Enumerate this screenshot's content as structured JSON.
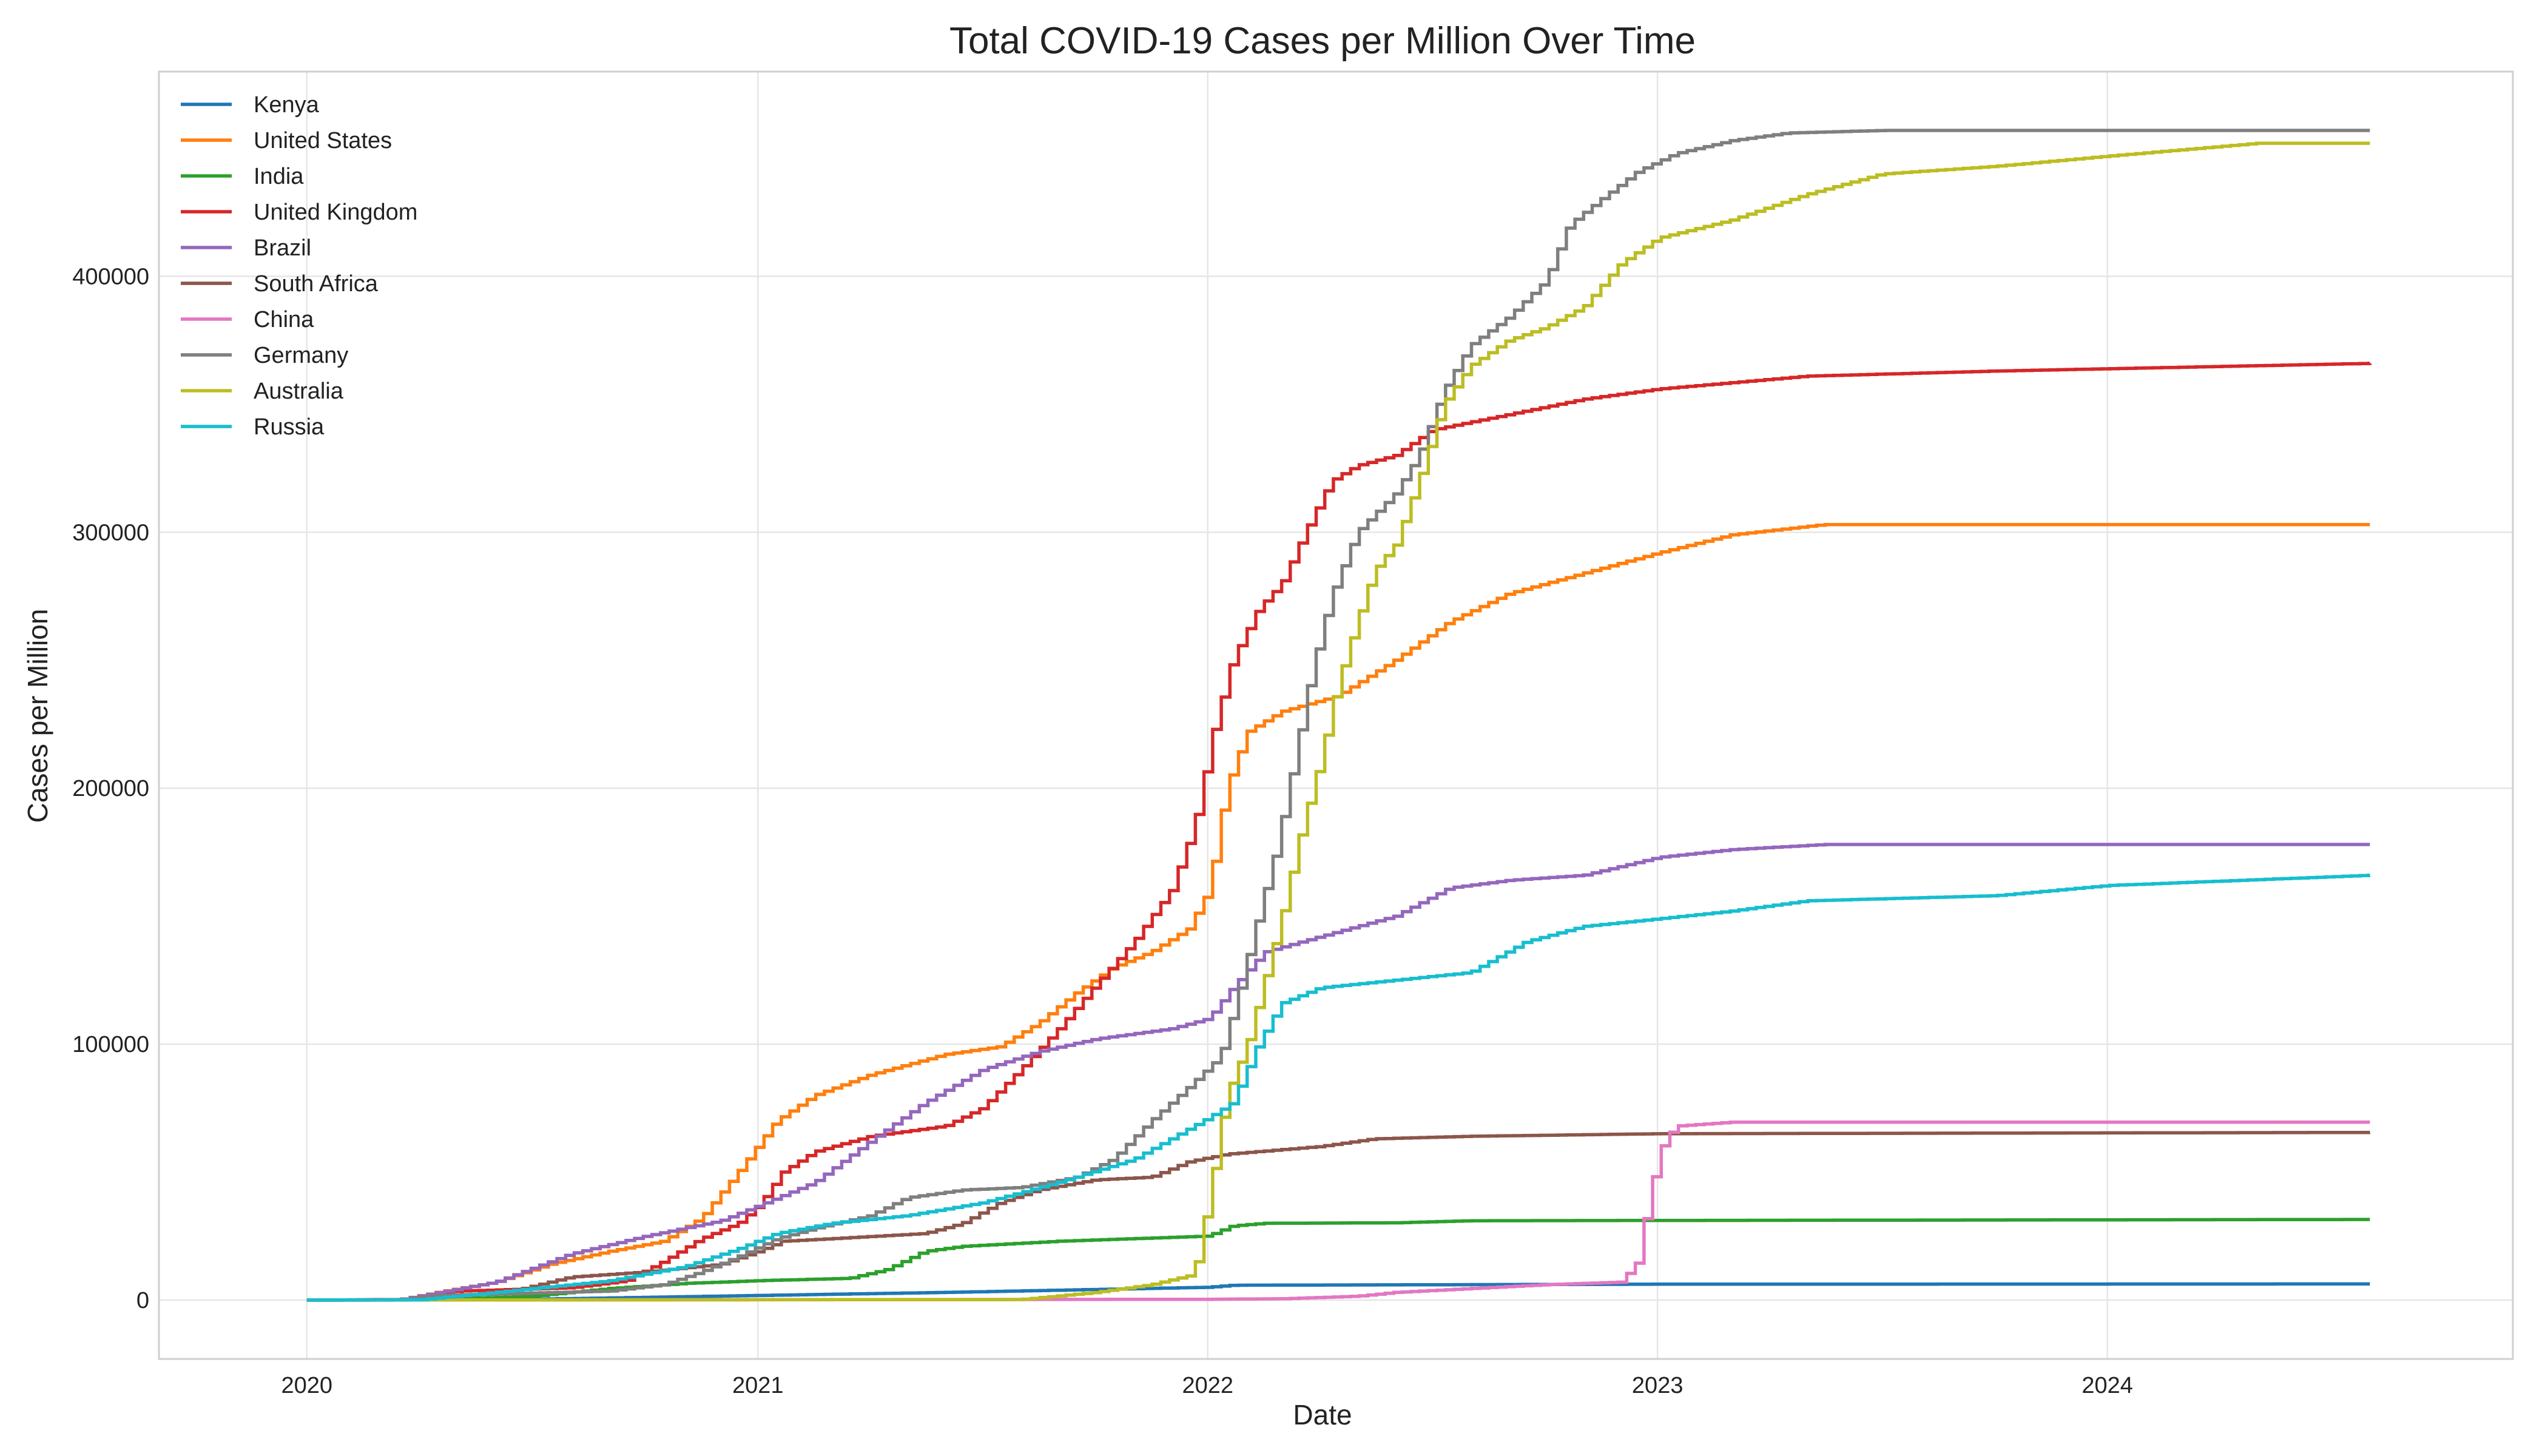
{
  "chart_data": {
    "type": "line",
    "title": "Total COVID-19 Cases per Million Over Time",
    "xlabel": "Date",
    "ylabel": "Cases per Million",
    "x_ticks": [
      "2020",
      "2021",
      "2022",
      "2023",
      "2024"
    ],
    "x_tick_values": [
      "2020-01-01",
      "2021-01-01",
      "2022-01-01",
      "2023-01-01",
      "2024-01-01"
    ],
    "xlim": [
      "2019-09-03",
      "2024-11-25"
    ],
    "y_ticks": [
      0,
      100000,
      200000,
      300000,
      400000
    ],
    "ylim": [
      -23000,
      480000
    ],
    "grid": true,
    "legend": "upper-left",
    "step": true,
    "series": [
      {
        "name": "Kenya",
        "color": "#1f77b4",
        "points": [
          [
            "2020-01-01",
            0
          ],
          [
            "2020-06-01",
            100
          ],
          [
            "2020-12-31",
            1800
          ],
          [
            "2021-06-01",
            3000
          ],
          [
            "2021-12-31",
            5000
          ],
          [
            "2022-01-20",
            5800
          ],
          [
            "2022-12-31",
            6200
          ],
          [
            "2024-08-01",
            6300
          ]
        ]
      },
      {
        "name": "United States",
        "color": "#ff7f0e",
        "points": [
          [
            "2020-01-01",
            0
          ],
          [
            "2020-03-15",
            100
          ],
          [
            "2020-04-15",
            3000
          ],
          [
            "2020-06-01",
            7000
          ],
          [
            "2020-07-15",
            14000
          ],
          [
            "2020-09-01",
            19000
          ],
          [
            "2020-10-15",
            23000
          ],
          [
            "2020-11-15",
            32000
          ],
          [
            "2020-12-15",
            50000
          ],
          [
            "2021-01-15",
            70000
          ],
          [
            "2021-02-15",
            80000
          ],
          [
            "2021-04-01",
            88000
          ],
          [
            "2021-06-01",
            96000
          ],
          [
            "2021-07-15",
            99000
          ],
          [
            "2021-08-15",
            108000
          ],
          [
            "2021-09-15",
            120000
          ],
          [
            "2021-10-15",
            130000
          ],
          [
            "2021-11-15",
            136000
          ],
          [
            "2021-12-15",
            145000
          ],
          [
            "2022-01-01",
            160000
          ],
          [
            "2022-01-15",
            200000
          ],
          [
            "2022-02-01",
            222000
          ],
          [
            "2022-03-01",
            230000
          ],
          [
            "2022-04-15",
            236000
          ],
          [
            "2022-06-01",
            250000
          ],
          [
            "2022-07-15",
            265000
          ],
          [
            "2022-09-01",
            276000
          ],
          [
            "2022-11-01",
            284000
          ],
          [
            "2023-01-01",
            292000
          ],
          [
            "2023-03-01",
            299000
          ],
          [
            "2023-05-15",
            303000
          ],
          [
            "2024-08-01",
            303000
          ]
        ]
      },
      {
        "name": "India",
        "color": "#2ca02c",
        "points": [
          [
            "2020-01-01",
            0
          ],
          [
            "2020-04-01",
            50
          ],
          [
            "2020-07-01",
            1500
          ],
          [
            "2020-09-01",
            4500
          ],
          [
            "2020-11-01",
            6500
          ],
          [
            "2021-01-01",
            7600
          ],
          [
            "2021-03-15",
            8500
          ],
          [
            "2021-04-15",
            12000
          ],
          [
            "2021-05-15",
            19000
          ],
          [
            "2021-06-15",
            21000
          ],
          [
            "2021-09-01",
            23000
          ],
          [
            "2021-12-31",
            25000
          ],
          [
            "2022-01-20",
            29000
          ],
          [
            "2022-02-15",
            30000
          ],
          [
            "2022-06-01",
            30200
          ],
          [
            "2022-08-01",
            31000
          ],
          [
            "2024-08-01",
            31500
          ]
        ]
      },
      {
        "name": "United Kingdom",
        "color": "#d62728",
        "points": [
          [
            "2020-01-01",
            0
          ],
          [
            "2020-03-15",
            200
          ],
          [
            "2020-05-01",
            3500
          ],
          [
            "2020-08-01",
            4800
          ],
          [
            "2020-09-15",
            7500
          ],
          [
            "2020-10-15",
            15000
          ],
          [
            "2020-11-15",
            24000
          ],
          [
            "2020-12-15",
            30000
          ],
          [
            "2021-01-01",
            37000
          ],
          [
            "2021-01-20",
            50000
          ],
          [
            "2021-02-15",
            58000
          ],
          [
            "2021-04-01",
            64000
          ],
          [
            "2021-06-01",
            68000
          ],
          [
            "2021-07-01",
            75000
          ],
          [
            "2021-08-01",
            90000
          ],
          [
            "2021-09-01",
            106000
          ],
          [
            "2021-10-01",
            123000
          ],
          [
            "2021-11-01",
            140000
          ],
          [
            "2021-12-01",
            160000
          ],
          [
            "2021-12-20",
            185000
          ],
          [
            "2022-01-05",
            223000
          ],
          [
            "2022-01-20",
            250000
          ],
          [
            "2022-02-10",
            270000
          ],
          [
            "2022-03-01",
            280000
          ],
          [
            "2022-03-20",
            300000
          ],
          [
            "2022-04-10",
            320000
          ],
          [
            "2022-05-01",
            326000
          ],
          [
            "2022-06-01",
            330000
          ],
          [
            "2022-07-01",
            340000
          ],
          [
            "2022-09-01",
            346000
          ],
          [
            "2022-11-01",
            352000
          ],
          [
            "2023-01-01",
            356000
          ],
          [
            "2023-05-01",
            361000
          ],
          [
            "2023-10-01",
            363000
          ],
          [
            "2024-08-01",
            366000
          ]
        ]
      },
      {
        "name": "Brazil",
        "color": "#9467bd",
        "points": [
          [
            "2020-01-01",
            0
          ],
          [
            "2020-03-15",
            100
          ],
          [
            "2020-06-01",
            7000
          ],
          [
            "2020-08-01",
            18000
          ],
          [
            "2020-10-01",
            25000
          ],
          [
            "2020-12-01",
            31000
          ],
          [
            "2021-01-01",
            37000
          ],
          [
            "2021-02-15",
            46000
          ],
          [
            "2021-04-01",
            62000
          ],
          [
            "2021-05-15",
            77000
          ],
          [
            "2021-07-01",
            90000
          ],
          [
            "2021-08-15",
            97000
          ],
          [
            "2021-10-01",
            102000
          ],
          [
            "2021-12-01",
            106000
          ],
          [
            "2022-01-01",
            110000
          ],
          [
            "2022-01-20",
            122000
          ],
          [
            "2022-02-15",
            136000
          ],
          [
            "2022-04-01",
            142000
          ],
          [
            "2022-06-01",
            150000
          ],
          [
            "2022-07-15",
            161000
          ],
          [
            "2022-09-01",
            164000
          ],
          [
            "2022-11-01",
            166000
          ],
          [
            "2023-01-01",
            173000
          ],
          [
            "2023-03-01",
            176000
          ],
          [
            "2023-05-15",
            178000
          ],
          [
            "2024-08-01",
            178000
          ]
        ]
      },
      {
        "name": "South Africa",
        "color": "#8c564b",
        "points": [
          [
            "2020-01-01",
            0
          ],
          [
            "2020-04-01",
            100
          ],
          [
            "2020-06-15",
            3500
          ],
          [
            "2020-08-01",
            9000
          ],
          [
            "2020-10-01",
            11000
          ],
          [
            "2020-12-01",
            14000
          ],
          [
            "2020-12-31",
            19000
          ],
          [
            "2021-01-20",
            23000
          ],
          [
            "2021-03-01",
            24000
          ],
          [
            "2021-05-15",
            26000
          ],
          [
            "2021-06-15",
            30000
          ],
          [
            "2021-07-15",
            38000
          ],
          [
            "2021-08-15",
            43000
          ],
          [
            "2021-10-01",
            47000
          ],
          [
            "2021-11-15",
            48000
          ],
          [
            "2021-12-15",
            54000
          ],
          [
            "2022-01-15",
            57000
          ],
          [
            "2022-04-01",
            60000
          ],
          [
            "2022-05-15",
            63000
          ],
          [
            "2022-08-01",
            64000
          ],
          [
            "2023-01-01",
            65000
          ],
          [
            "2024-08-01",
            65500
          ]
        ]
      },
      {
        "name": "China",
        "color": "#e377c2",
        "points": [
          [
            "2020-01-01",
            0
          ],
          [
            "2021-12-31",
            300
          ],
          [
            "2022-03-01",
            500
          ],
          [
            "2022-05-01",
            1500
          ],
          [
            "2022-06-01",
            3000
          ],
          [
            "2022-08-01",
            4500
          ],
          [
            "2022-10-01",
            6000
          ],
          [
            "2022-12-01",
            7000
          ],
          [
            "2022-12-15",
            15000
          ],
          [
            "2022-12-25",
            43000
          ],
          [
            "2023-01-05",
            62000
          ],
          [
            "2023-01-15",
            68000
          ],
          [
            "2023-03-01",
            69500
          ],
          [
            "2024-08-01",
            69500
          ]
        ]
      },
      {
        "name": "Germany",
        "color": "#7f7f7f",
        "points": [
          [
            "2020-01-01",
            0
          ],
          [
            "2020-03-15",
            100
          ],
          [
            "2020-04-15",
            1800
          ],
          [
            "2020-09-01",
            3500
          ],
          [
            "2020-10-15",
            6000
          ],
          [
            "2020-11-15",
            11000
          ],
          [
            "2020-12-15",
            17000
          ],
          [
            "2021-01-15",
            24000
          ],
          [
            "2021-02-15",
            28000
          ],
          [
            "2021-04-01",
            33000
          ],
          [
            "2021-05-01",
            40000
          ],
          [
            "2021-06-15",
            43000
          ],
          [
            "2021-08-01",
            44000
          ],
          [
            "2021-09-15",
            48000
          ],
          [
            "2021-10-15",
            55000
          ],
          [
            "2021-11-15",
            70000
          ],
          [
            "2021-12-15",
            83000
          ],
          [
            "2022-01-10",
            95000
          ],
          [
            "2022-01-25",
            120000
          ],
          [
            "2022-02-10",
            150000
          ],
          [
            "2022-02-25",
            177000
          ],
          [
            "2022-03-10",
            208000
          ],
          [
            "2022-03-25",
            245000
          ],
          [
            "2022-04-10",
            275000
          ],
          [
            "2022-05-01",
            300000
          ],
          [
            "2022-06-01",
            315000
          ],
          [
            "2022-06-20",
            330000
          ],
          [
            "2022-07-10",
            355000
          ],
          [
            "2022-08-01",
            373000
          ],
          [
            "2022-09-01",
            384000
          ],
          [
            "2022-10-01",
            398000
          ],
          [
            "2022-10-20",
            420000
          ],
          [
            "2022-11-15",
            430000
          ],
          [
            "2022-12-15",
            441000
          ],
          [
            "2023-01-15",
            448000
          ],
          [
            "2023-03-01",
            453000
          ],
          [
            "2023-04-15",
            456000
          ],
          [
            "2023-07-01",
            457000
          ],
          [
            "2024-08-01",
            457000
          ]
        ]
      },
      {
        "name": "Australia",
        "color": "#bcbd22",
        "points": [
          [
            "2020-01-01",
            0
          ],
          [
            "2021-08-01",
            200
          ],
          [
            "2021-10-01",
            3000
          ],
          [
            "2021-11-15",
            6000
          ],
          [
            "2021-12-20",
            10000
          ],
          [
            "2022-01-01",
            40000
          ],
          [
            "2022-01-15",
            80000
          ],
          [
            "2022-02-01",
            100000
          ],
          [
            "2022-02-15",
            125000
          ],
          [
            "2022-03-01",
            150000
          ],
          [
            "2022-03-15",
            180000
          ],
          [
            "2022-04-01",
            210000
          ],
          [
            "2022-04-15",
            240000
          ],
          [
            "2022-05-01",
            265000
          ],
          [
            "2022-05-15",
            285000
          ],
          [
            "2022-06-01",
            295000
          ],
          [
            "2022-06-20",
            320000
          ],
          [
            "2022-07-10",
            350000
          ],
          [
            "2022-08-01",
            365000
          ],
          [
            "2022-09-01",
            375000
          ],
          [
            "2022-10-01",
            380000
          ],
          [
            "2022-11-01",
            388000
          ],
          [
            "2022-12-01",
            405000
          ],
          [
            "2023-01-01",
            415000
          ],
          [
            "2023-03-01",
            422000
          ],
          [
            "2023-05-01",
            432000
          ],
          [
            "2023-07-01",
            440000
          ],
          [
            "2023-10-01",
            443000
          ],
          [
            "2024-01-01",
            447000
          ],
          [
            "2024-05-01",
            452000
          ],
          [
            "2024-08-01",
            452000
          ]
        ]
      },
      {
        "name": "Russia",
        "color": "#17becf",
        "points": [
          [
            "2020-01-01",
            0
          ],
          [
            "2020-04-01",
            100
          ],
          [
            "2020-06-01",
            3000
          ],
          [
            "2020-09-01",
            7500
          ],
          [
            "2020-11-01",
            13000
          ],
          [
            "2020-12-15",
            20000
          ],
          [
            "2021-01-15",
            26000
          ],
          [
            "2021-03-01",
            30000
          ],
          [
            "2021-05-01",
            33000
          ],
          [
            "2021-07-01",
            38000
          ],
          [
            "2021-09-01",
            46000
          ],
          [
            "2021-11-01",
            55000
          ],
          [
            "2021-12-01",
            63000
          ],
          [
            "2021-12-31",
            71000
          ],
          [
            "2022-01-20",
            77000
          ],
          [
            "2022-02-10",
            100000
          ],
          [
            "2022-03-01",
            116000
          ],
          [
            "2022-04-01",
            122000
          ],
          [
            "2022-06-01",
            125000
          ],
          [
            "2022-08-01",
            128000
          ],
          [
            "2022-09-15",
            140000
          ],
          [
            "2022-11-01",
            146000
          ],
          [
            "2023-01-01",
            149000
          ],
          [
            "2023-03-01",
            152000
          ],
          [
            "2023-05-01",
            156000
          ],
          [
            "2023-10-01",
            158000
          ],
          [
            "2024-01-01",
            162000
          ],
          [
            "2024-08-01",
            166000
          ]
        ]
      }
    ]
  }
}
